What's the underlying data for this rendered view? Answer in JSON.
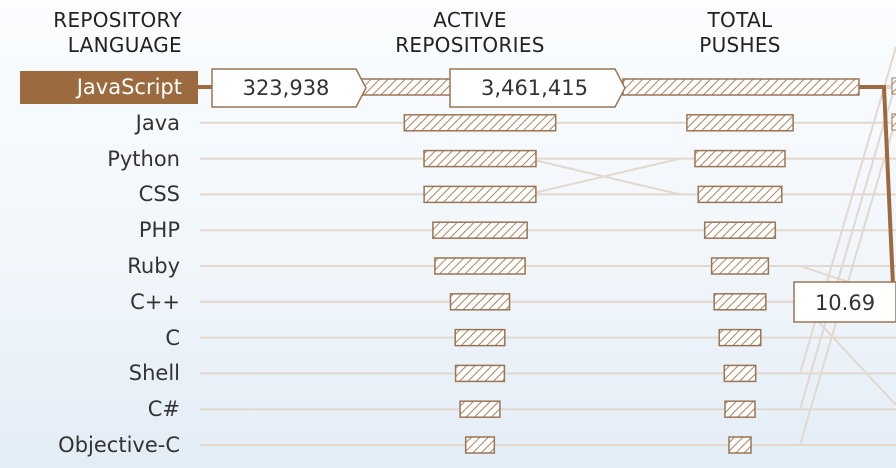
{
  "headers": {
    "language": [
      "REPOSITORY",
      "LANGUAGE"
    ],
    "active": [
      "ACTIVE",
      "REPOSITORIES"
    ],
    "pushes": [
      "TOTAL",
      "PUSHES"
    ]
  },
  "colors": {
    "accent": "#9b6b3f",
    "bar_stroke": "#9b7453",
    "hatch": "#a9845f",
    "link": "#e3d8cd"
  },
  "selected": {
    "language": "JavaScript",
    "active_repositories_label": "323,938",
    "total_pushes_label": "3,461,415",
    "ratio_label": "10.69"
  },
  "chart_data": {
    "type": "bar",
    "categories": [
      "JavaScript",
      "Java",
      "Python",
      "CSS",
      "PHP",
      "Ruby",
      "C++",
      "C",
      "Shell",
      "C#",
      "Objective-C"
    ],
    "series": [
      {
        "name": "ACTIVE REPOSITORIES",
        "values": [
          323938,
          222852,
          164852,
          164585,
          138771,
          132848,
          86897,
          73075,
          71842,
          58627,
          42144
        ]
      },
      {
        "name": "TOTAL PUSHES",
        "values": [
          3461415,
          2300000,
          1950000,
          1810000,
          1530000,
          1230000,
          1120000,
          900000,
          680000,
          650000,
          340000
        ]
      }
    ]
  }
}
